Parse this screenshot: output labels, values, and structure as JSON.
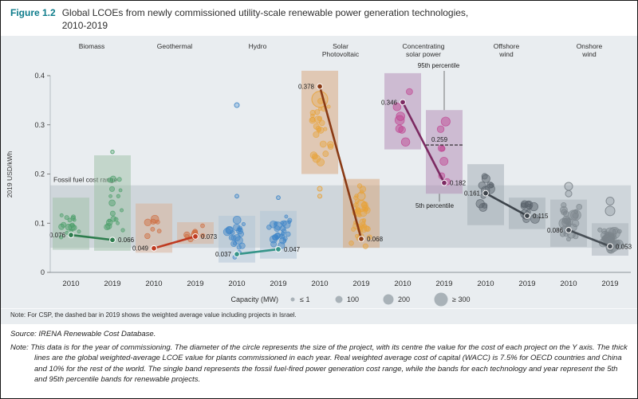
{
  "title": {
    "label": "Figure 1.2",
    "line1": "Global LCOEs from newly commissioned utility-scale renewable power generation technologies,",
    "line2": "2010-2019"
  },
  "chart_note": "Note: For CSP, the dashed bar in 2019 shows the weighted average value including projects in Israel.",
  "source": "Source: IRENA Renewable Cost Database.",
  "long_note": "Note: This data is for the year of commissioning. The diameter of the circle represents the size of the project, with its centre the value for the cost of each project on the Y axis. The thick lines are the global weighted-average LCOE value for plants commissioned in each year. Real weighted average cost of capital (WACC) is 7.5% for OECD countries and China and 10% for the rest of the world. The single band represents the fossil fuel-fired power generation cost range, while the bands for each technology and year represent the 5th and 95th percentile bands for renewable projects.",
  "chart_data": {
    "type": "scatter",
    "title": "Global LCOEs from newly commissioned utility-scale renewable power generation technologies, 2010-2019",
    "xlabel": "",
    "ylabel": "2019 USD/kWh",
    "ylim": [
      0,
      0.44
    ],
    "yticks": [
      0,
      0.1,
      0.2,
      0.3,
      0.4
    ],
    "ytick_labels": [
      "0",
      "0.1",
      "0.2",
      "0.3",
      "0.4"
    ],
    "years": [
      "2010",
      "2019"
    ],
    "legend_position": "bottom",
    "background": "#e9edf0",
    "fossil_band": {
      "label": "Fossil fuel cost range",
      "range": [
        0.05,
        0.177
      ],
      "color": "#b9c3ca"
    },
    "capacity_legend": {
      "label": "Capacity (MW)",
      "items": [
        "≤ 1",
        "100",
        "200",
        "≥ 300"
      ]
    },
    "percentiles": {
      "p95_label": "95th percentile",
      "p5_label": "5th percentile"
    },
    "csp_dashed": {
      "value": 0.259,
      "label": "0.259"
    },
    "technologies": [
      {
        "name_lines": [
          "Biomass"
        ],
        "avg": {
          "y2010": 0.076,
          "y2019": 0.066
        },
        "avg_labels": {
          "y2010": "0.076",
          "y2019": "0.066"
        },
        "band": {
          "y2010": [
            0.046,
            0.152
          ],
          "y2019": [
            0.044,
            0.238
          ]
        },
        "colors": {
          "point": "#4a9e68",
          "line": "#2e7d4e",
          "band": "#9dbfa6"
        },
        "scatter": {
          "y2010": {
            "n": 16,
            "range": [
              0.05,
              0.145
            ],
            "r": [
              2,
              4.5
            ],
            "outliers": []
          },
          "y2019": {
            "n": 18,
            "range": [
              0.048,
              0.225
            ],
            "r": [
              2,
              4.5
            ],
            "outliers": [
              {
                "v": 0.245,
                "r": 2.2
              }
            ]
          }
        }
      },
      {
        "name_lines": [
          "Geothermal"
        ],
        "avg": {
          "y2010": 0.049,
          "y2019": 0.073
        },
        "avg_labels": {
          "y2010": "0.049",
          "y2019": "0.073"
        },
        "band": {
          "y2010": [
            0.04,
            0.14
          ],
          "y2019": [
            0.058,
            0.102
          ]
        },
        "colors": {
          "point": "#cf6a3c",
          "line": "#bf3b21",
          "band": "#d9b096"
        },
        "scatter": {
          "y2010": {
            "n": 7,
            "range": [
              0.042,
              0.118
            ],
            "r": [
              2.5,
              5
            ],
            "outliers": []
          },
          "y2019": {
            "n": 9,
            "range": [
              0.06,
              0.1
            ],
            "r": [
              2.5,
              5
            ],
            "outliers": []
          }
        }
      },
      {
        "name_lines": [
          "Hydro"
        ],
        "avg": {
          "y2010": 0.037,
          "y2019": 0.047
        },
        "avg_labels": {
          "y2010": "0.037",
          "y2019": "0.047"
        },
        "band": {
          "y2010": [
            0.02,
            0.115
          ],
          "y2019": [
            0.028,
            0.125
          ]
        },
        "colors": {
          "point": "#3e86c8",
          "line": "#37958a",
          "band": "#afc3d6"
        },
        "scatter": {
          "y2010": {
            "n": 22,
            "range": [
              0.022,
              0.112
            ],
            "r": [
              2,
              5
            ],
            "outliers": [
              {
                "v": 0.34,
                "r": 3
              },
              {
                "v": 0.155,
                "r": 2.4
              }
            ]
          },
          "y2019": {
            "n": 28,
            "range": [
              0.028,
              0.122
            ],
            "r": [
              2,
              5
            ],
            "outliers": [
              {
                "v": 0.152,
                "r": 2.4
              }
            ]
          }
        }
      },
      {
        "name_lines": [
          "Solar",
          "Photovoltaic"
        ],
        "avg": {
          "y2010": 0.378,
          "y2019": 0.068
        },
        "avg_labels": {
          "y2010": "0.378",
          "y2019": "0.068"
        },
        "band": {
          "y2010": [
            0.2,
            0.41
          ],
          "y2019": [
            0.05,
            0.19
          ]
        },
        "colors": {
          "point": "#e7a33c",
          "line": "#8a3a14",
          "band": "#d7a377"
        },
        "scatter": {
          "y2010": {
            "n": 26,
            "range": [
              0.19,
              0.405
            ],
            "r": [
              2,
              5
            ],
            "outliers": [
              {
                "v": 0.352,
                "r": 10
              },
              {
                "v": 0.17,
                "r": 3
              },
              {
                "v": 0.155,
                "r": 2.6
              }
            ]
          },
          "y2019": {
            "n": 42,
            "range": [
              0.042,
              0.185
            ],
            "r": [
              2,
              4.5
            ],
            "outliers": [
              {
                "v": 0.135,
                "r": 7
              },
              {
                "v": 0.155,
                "r": 5
              }
            ]
          }
        }
      },
      {
        "name_lines": [
          "Concentrating",
          "solar power"
        ],
        "avg": {
          "y2010": 0.346,
          "y2019": 0.182
        },
        "avg_labels": {
          "y2010": "0.346",
          "y2019": "0.182"
        },
        "band": {
          "y2010": [
            0.25,
            0.405
          ],
          "y2019": [
            0.16,
            0.33
          ]
        },
        "colors": {
          "point": "#bf3f8e",
          "line": "#7c2a62",
          "band": "#b18ab4"
        },
        "scatter": {
          "y2010": {
            "n": 7,
            "range": [
              0.26,
              0.4
            ],
            "r": [
              3,
              6
            ],
            "outliers": []
          },
          "y2019": {
            "n": 7,
            "range": [
              0.17,
              0.31
            ],
            "r": [
              3,
              6
            ],
            "outliers": []
          }
        }
      },
      {
        "name_lines": [
          "Offshore",
          "wind"
        ],
        "avg": {
          "y2010": 0.161,
          "y2019": 0.115
        },
        "avg_labels": {
          "y2010": "0.161",
          "y2019": "0.115"
        },
        "band": {
          "y2010": [
            0.096,
            0.22
          ],
          "y2019": [
            0.088,
            0.152
          ]
        },
        "colors": {
          "point": "#59616a",
          "line": "#3d444b",
          "band": "#a2abb3"
        },
        "scatter": {
          "y2010": {
            "n": 11,
            "range": [
              0.1,
              0.21
            ],
            "r": [
              3,
              6
            ],
            "outliers": []
          },
          "y2019": {
            "n": 14,
            "range": [
              0.09,
              0.15
            ],
            "r": [
              3,
              6
            ],
            "outliers": []
          }
        }
      },
      {
        "name_lines": [
          "Onshore",
          "wind"
        ],
        "avg": {
          "y2010": 0.086,
          "y2019": 0.053
        },
        "avg_labels": {
          "y2010": "0.086",
          "y2019": "0.053"
        },
        "band": {
          "y2010": [
            0.052,
            0.148
          ],
          "y2019": [
            0.034,
            0.1
          ]
        },
        "colors": {
          "point": "#7c848b",
          "line": "#474e55",
          "band": "#a8b0b7"
        },
        "scatter": {
          "y2010": {
            "n": 26,
            "range": [
              0.055,
              0.145
            ],
            "r": [
              2.5,
              6.5
            ],
            "outliers": [
              {
                "v": 0.175,
                "r": 5
              },
              {
                "v": 0.16,
                "r": 4
              }
            ]
          },
          "y2019": {
            "n": 30,
            "range": [
              0.036,
              0.1
            ],
            "r": [
              2.5,
              7.5
            ],
            "outliers": [
              {
                "v": 0.125,
                "r": 6
              },
              {
                "v": 0.145,
                "r": 5
              }
            ]
          }
        }
      }
    ]
  }
}
